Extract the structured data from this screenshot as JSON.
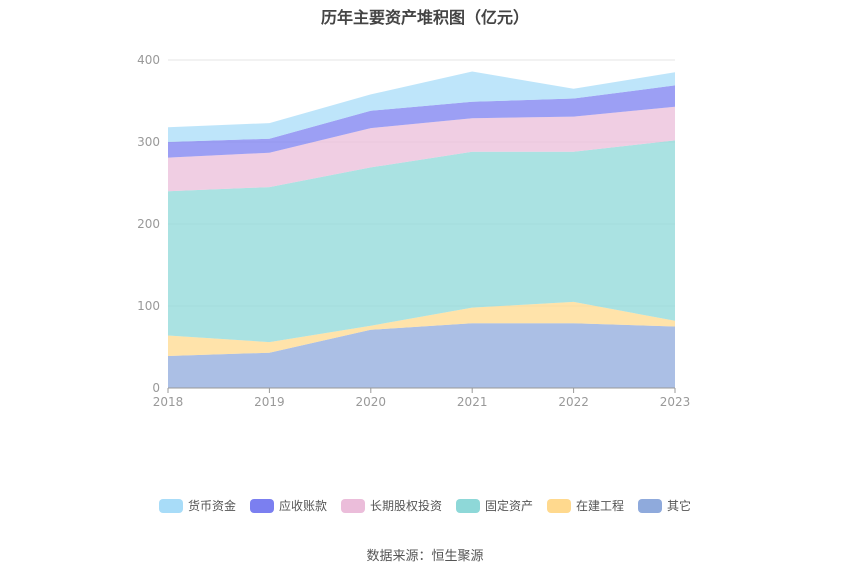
{
  "chart_data": {
    "type": "area",
    "stacked": true,
    "title": "历年主要资产堆积图（亿元）",
    "x": [
      "2018",
      "2019",
      "2020",
      "2021",
      "2022",
      "2023"
    ],
    "ylim": [
      0,
      400
    ],
    "yticks": [
      0,
      100,
      200,
      300,
      400
    ],
    "grid": true,
    "legend_position": "bottom",
    "series": [
      {
        "name": "其它",
        "color": "#8faadc",
        "values": [
          39,
          43,
          71,
          79,
          79,
          75
        ]
      },
      {
        "name": "在建工程",
        "color": "#ffd98e",
        "values": [
          25,
          13,
          5,
          19,
          26,
          7
        ]
      },
      {
        "name": "固定资产",
        "color": "#8ed8d8",
        "values": [
          176,
          189,
          193,
          190,
          183,
          220
        ]
      },
      {
        "name": "长期股权投资",
        "color": "#ebbdda",
        "values": [
          41,
          42,
          48,
          41,
          43,
          41
        ]
      },
      {
        "name": "应收账款",
        "color": "#7b7ff0",
        "values": [
          19,
          17,
          21,
          20,
          22,
          26
        ]
      },
      {
        "name": "货币资金",
        "color": "#a8dcf8",
        "values": [
          18,
          19,
          20,
          37,
          12,
          16
        ]
      }
    ],
    "legend_order": [
      "货币资金",
      "应收账款",
      "长期股权投资",
      "固定资产",
      "在建工程",
      "其它"
    ]
  },
  "source_text": "数据来源：恒生聚源"
}
